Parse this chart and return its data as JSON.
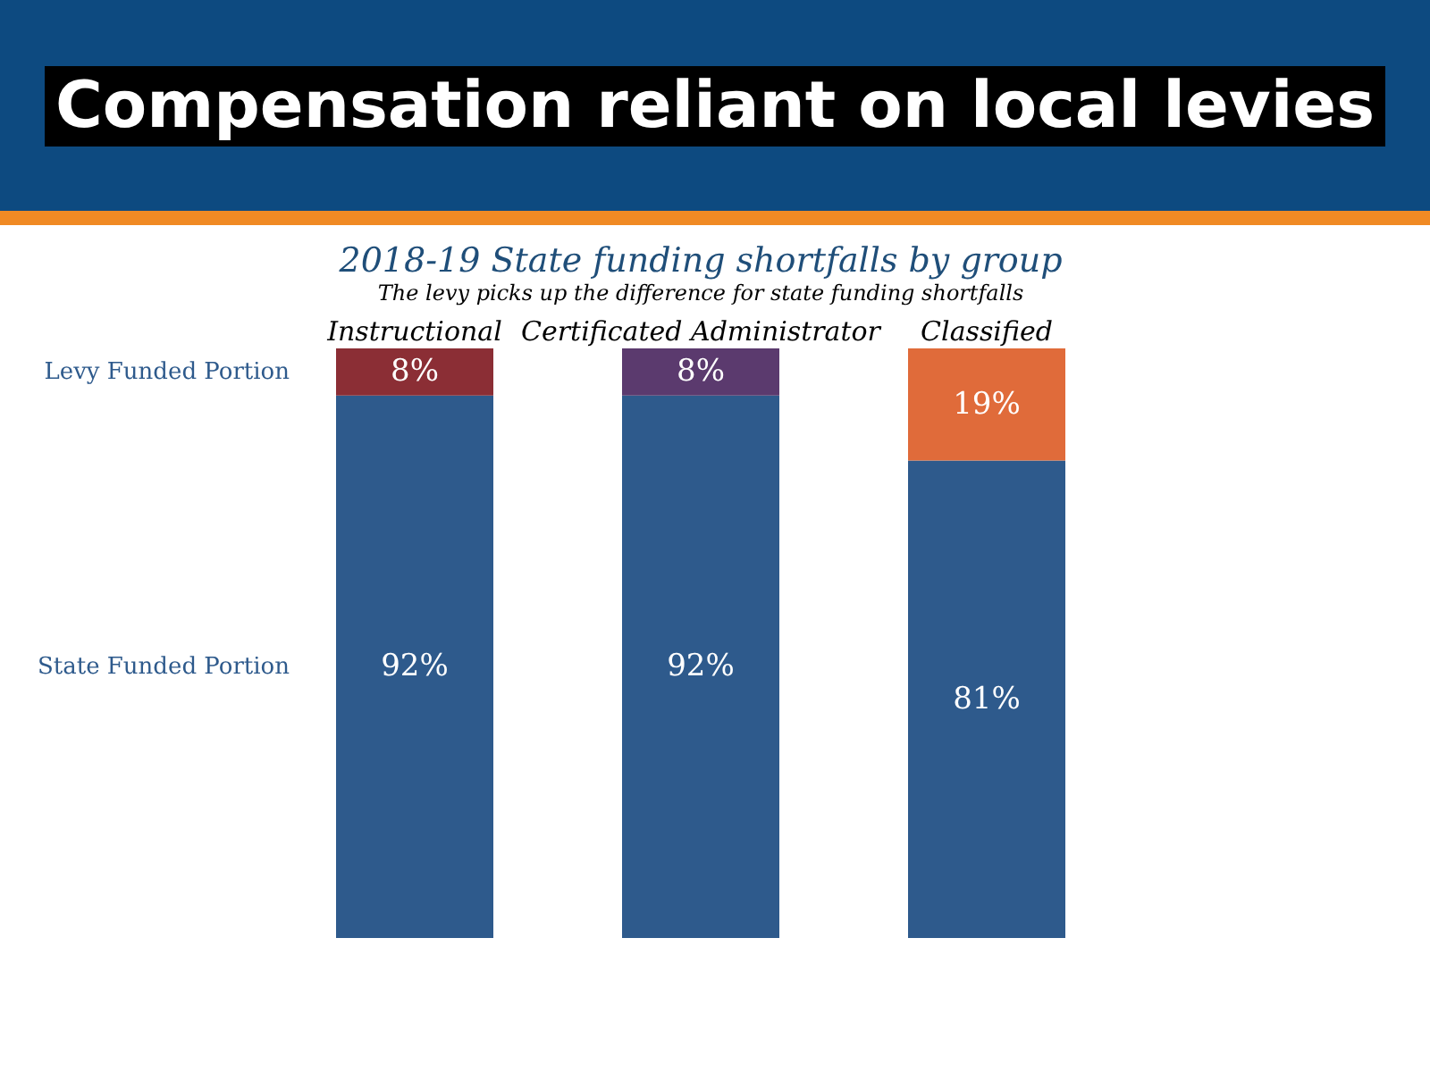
{
  "chart_data": {
    "type": "bar",
    "title": "Compensation reliant on local levies",
    "subtitle": "2018-19 State funding shortfalls by group",
    "categories": [
      "Instructional",
      "Certificated Administrator",
      "Classified"
    ],
    "stacked": true,
    "series": [
      {
        "name": "State Funded Portion",
        "color": "#2e5a8c",
        "values": [
          92,
          92,
          81
        ],
        "value_labels": [
          "92%",
          "92%",
          "81%"
        ]
      },
      {
        "name": "Levy Funded Portion",
        "colors": [
          "#8b2e35",
          "#5b3a6e",
          "#e06b3a"
        ],
        "values": [
          8,
          8,
          19
        ],
        "value_labels": [
          "8%",
          "8%",
          "19%"
        ]
      }
    ],
    "annotations": [
      "The levy picks up the difference for state funding shortfalls"
    ]
  }
}
